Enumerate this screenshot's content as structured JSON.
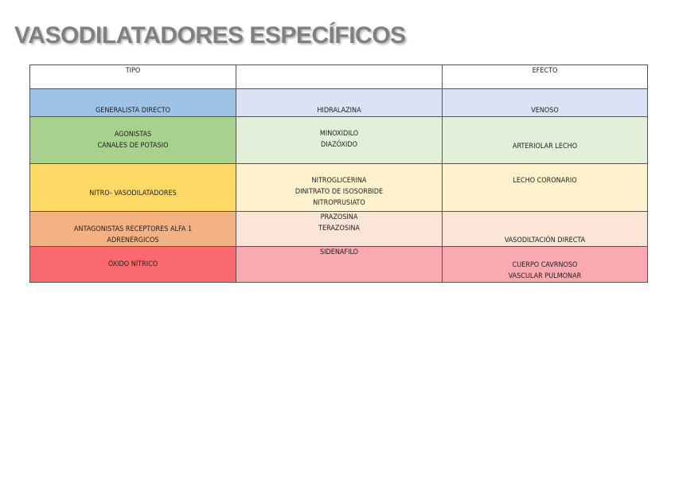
{
  "title": "VASODILATADORES ESPECÍFICOS",
  "headers": [
    "TIPO",
    "",
    "EFECTO"
  ],
  "rows": [
    {
      "tipo": "GENERALISTA DIRECTO",
      "farmaco": "HIDRALAZINA",
      "efecto": "VENOSO",
      "colors": [
        "#9dc3e6",
        "#dae3f3",
        "#dae3f3"
      ]
    },
    {
      "tipo": "AGONISTAS\nCANALES DE POTASIO",
      "farmaco": "MINOXIDILO\nDIAZÓXIDO",
      "efecto": "ARTERIOLAR LECHO",
      "colors": [
        "#a9d18e",
        "#e2f0d9",
        "#e2f0d9"
      ]
    },
    {
      "tipo": "NITRO- VASODILATADORES",
      "farmaco": "NITROGLICERINA\nDINITRATO DE ISOSORBIDE\nNITROPRUSIATO",
      "efecto": "LECHO CORONARIO",
      "colors": [
        "#ffd966",
        "#fff2cc",
        "#fff2cc"
      ]
    },
    {
      "tipo": "ANTAGONISTAS RECEPTORES ALFA 1\nADRENÉRGICOS",
      "farmaco": "PRAZOSINA\nTERAZOSINA",
      "efecto": "VASODILTACIÓN DIRECTA",
      "colors": [
        "#f4b183",
        "#fbe5d6",
        "#fbe5d6"
      ]
    },
    {
      "tipo": "ÓXIDO NÍTRICO",
      "farmaco": "SIDENAFILO",
      "efecto": "CUERPO CAVRNOSO\nVASCULAR PULMONAR",
      "colors": [
        "#fa6a6e",
        "#f9a9af",
        "#f9a9af"
      ]
    }
  ]
}
